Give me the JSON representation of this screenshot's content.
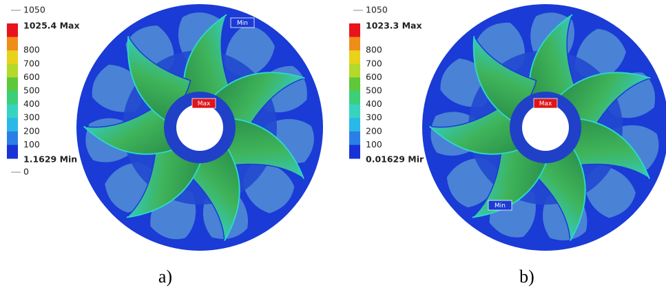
{
  "panels": [
    {
      "legend": {
        "top": "1050",
        "max": "1025.4 Max",
        "levels": [
          "800",
          "700",
          "600",
          "500",
          "400",
          "300",
          "200",
          "100"
        ],
        "min": "1.1629 Min",
        "bottom": "0"
      },
      "markers": {
        "max": "Max",
        "min": "Min"
      },
      "caption": "a)"
    },
    {
      "legend": {
        "top": "1050",
        "max": "1023.3 Max",
        "levels": [
          "800",
          "700",
          "600",
          "500",
          "400",
          "300",
          "200",
          "100"
        ],
        "min": "0.01629 Mir"
      },
      "markers": {
        "max": "Max",
        "min": "Min"
      },
      "caption": "b)"
    }
  ]
}
